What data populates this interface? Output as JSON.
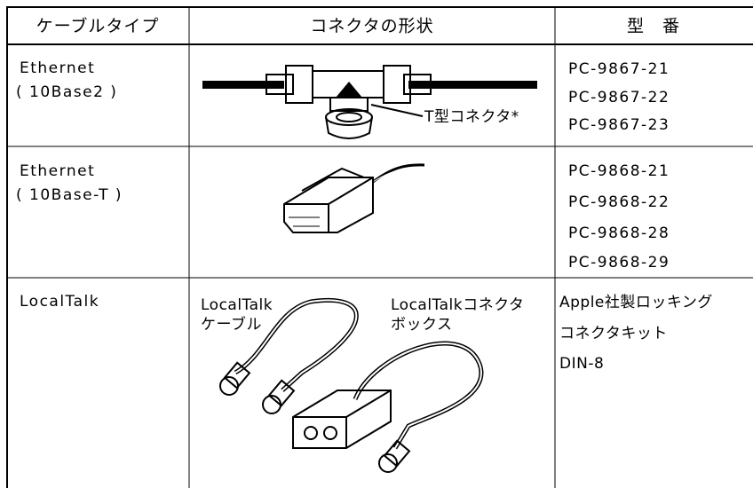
{
  "table": {
    "header": [
      "ケーブルタイプ",
      "コネクタの形状",
      "型　番"
    ],
    "rows": [
      {
        "cable": [
          "Ethernet",
          "( 10Base2 )"
        ],
        "shape_labels": [
          "T型コネクタ*"
        ],
        "models": [
          "PC-9867-21",
          "PC-9867-22",
          "PC-9867-23"
        ]
      },
      {
        "cable": [
          "Ethernet",
          "( 10Base-T )"
        ],
        "shape_labels": [],
        "models": [
          "PC-9868-21",
          "PC-9868-22",
          "PC-9868-28",
          "PC-9868-29"
        ]
      },
      {
        "cable": [
          "LocalTalk"
        ],
        "shape_labels": [
          "LocalTalk",
          "ケーブル",
          "LocalTalkコネクタ",
          "ボックス"
        ],
        "models": [
          "Apple社製ロッキング",
          "コネクタキット",
          "DIN-8"
        ]
      }
    ]
  }
}
